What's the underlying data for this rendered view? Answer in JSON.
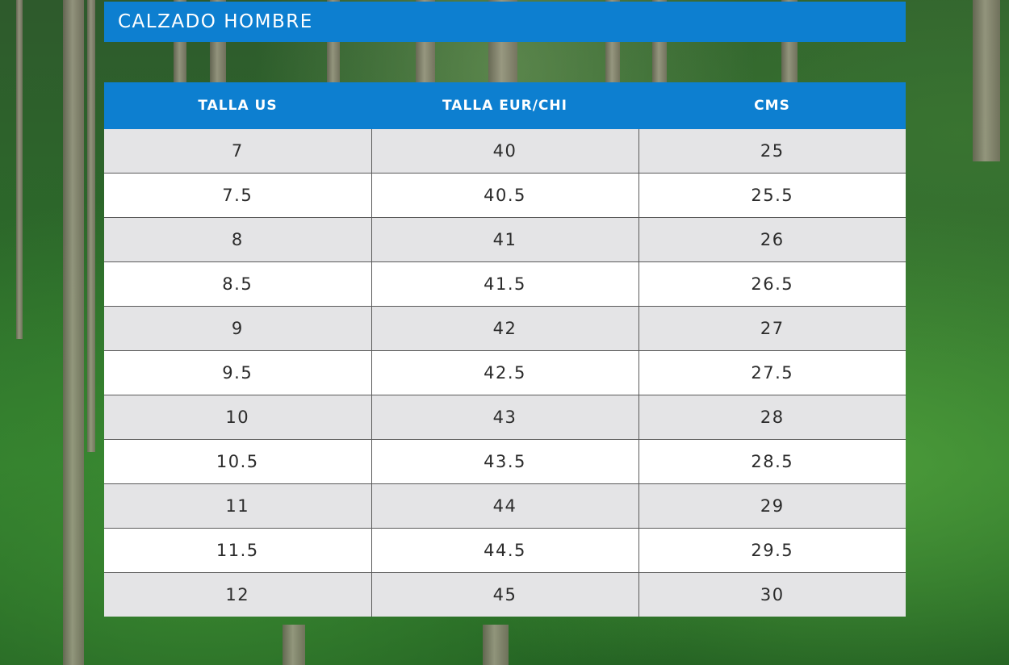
{
  "title": "CALZADO HOMBRE",
  "headers": [
    "TALLA US",
    "TALLA EUR/CHI",
    "CMS"
  ],
  "rows": [
    [
      "7",
      "40",
      "25"
    ],
    [
      "7.5",
      "40.5",
      "25.5"
    ],
    [
      "8",
      "41",
      "26"
    ],
    [
      "8.5",
      "41.5",
      "26.5"
    ],
    [
      "9",
      "42",
      "27"
    ],
    [
      "9.5",
      "42.5",
      "27.5"
    ],
    [
      "10",
      "43",
      "28"
    ],
    [
      "10.5",
      "43.5",
      "28.5"
    ],
    [
      "11",
      "44",
      "29"
    ],
    [
      "11.5",
      "44.5",
      "29.5"
    ],
    [
      "12",
      "45",
      "30"
    ]
  ],
  "colors": {
    "accent": "#0d7fd0",
    "row_alt": "#e4e4e6",
    "row": "#ffffff"
  }
}
